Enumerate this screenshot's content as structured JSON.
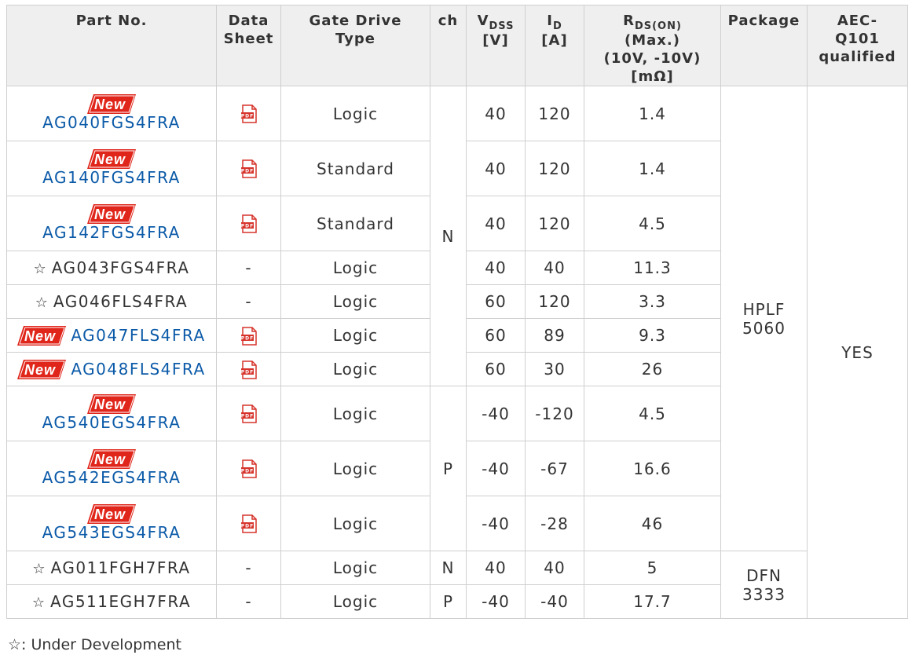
{
  "headers": {
    "part_no": "Part No.",
    "data_sheet_1": "Data",
    "data_sheet_2": "Sheet",
    "gate_drive_1": "Gate Drive",
    "gate_drive_2": "Type",
    "ch": "ch",
    "vdss_main": "V",
    "vdss_sub": "DSS",
    "vdss_unit": "[V]",
    "id_main": "I",
    "id_sub": "D",
    "id_unit": "[A]",
    "rds_main": "R",
    "rds_sub": "DS(ON)",
    "rds_line2": "(Max.)",
    "rds_line3": "(10V, -10V)",
    "rds_unit": "[mΩ]",
    "package": "Package",
    "aec_1": "AEC-",
    "aec_2": "Q101",
    "aec_3": "qualified"
  },
  "badge_text": "New",
  "star_symbol": "☆",
  "icons": {
    "datasheet": "pdf-icon",
    "new": "new-badge-icon",
    "status": "star-icon"
  },
  "colors": {
    "link": "#0b5aa8",
    "badge": "#e0261b",
    "header_bg": "#efefef",
    "border": "#cfcfcf"
  },
  "rows": [
    {
      "part": "AG040FGS4FRA",
      "gate": "Logic",
      "vdss": "40",
      "id": "120",
      "rds": "1.4"
    },
    {
      "part": "AG140FGS4FRA",
      "gate": "Standard",
      "vdss": "40",
      "id": "120",
      "rds": "1.4"
    },
    {
      "part": "AG142FGS4FRA",
      "gate": "Standard",
      "vdss": "40",
      "id": "120",
      "rds": "4.5"
    },
    {
      "part": "AG043FGS4FRA",
      "datasheet": "-",
      "gate": "Logic",
      "vdss": "40",
      "id": "40",
      "rds": "11.3"
    },
    {
      "part": "AG046FLS4FRA",
      "datasheet": "-",
      "gate": "Logic",
      "vdss": "60",
      "id": "120",
      "rds": "3.3"
    },
    {
      "part": "AG047FLS4FRA",
      "gate": "Logic",
      "vdss": "60",
      "id": "89",
      "rds": "9.3"
    },
    {
      "part": "AG048FLS4FRA",
      "gate": "Logic",
      "vdss": "60",
      "id": "30",
      "rds": "26"
    },
    {
      "part": "AG540EGS4FRA",
      "gate": "Logic",
      "vdss": "-40",
      "id": "-120",
      "rds": "4.5"
    },
    {
      "part": "AG542EGS4FRA",
      "gate": "Logic",
      "vdss": "-40",
      "id": "-67",
      "rds": "16.6"
    },
    {
      "part": "AG543EGS4FRA",
      "gate": "Logic",
      "vdss": "-40",
      "id": "-28",
      "rds": "46"
    },
    {
      "part": "AG011FGH7FRA",
      "datasheet": "-",
      "gate": "Logic",
      "ch": "N",
      "vdss": "40",
      "id": "40",
      "rds": "5"
    },
    {
      "part": "AG511EGH7FRA",
      "datasheet": "-",
      "gate": "Logic",
      "ch": "P",
      "vdss": "-40",
      "id": "-40",
      "rds": "17.7"
    }
  ],
  "merged": {
    "ch_n": "N",
    "ch_p": "P",
    "pkg_hplf_1": "HPLF",
    "pkg_hplf_2": "5060",
    "pkg_dfn_1": "DFN",
    "pkg_dfn_2": "3333",
    "aec": "YES"
  },
  "footnote": {
    "symbol": "☆",
    "text": ": Under Development"
  }
}
